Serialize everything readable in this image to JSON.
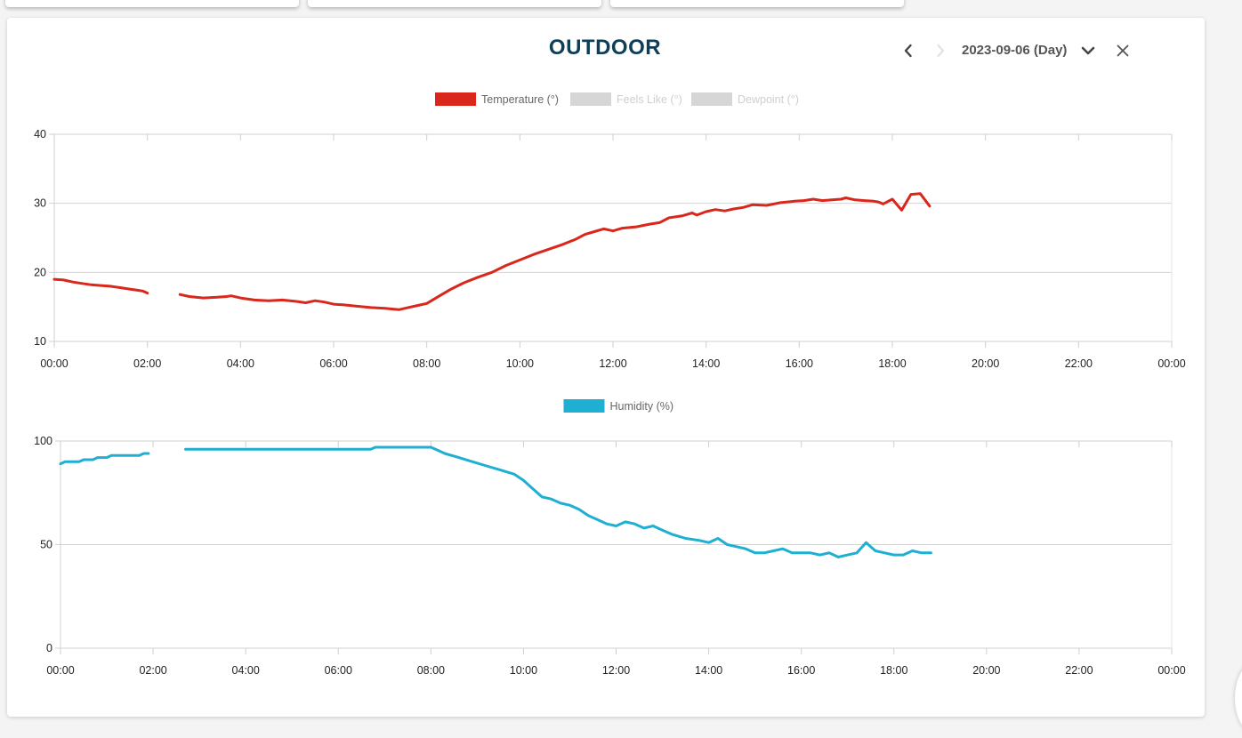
{
  "header": {
    "title": "OUTDOOR",
    "date_label": "2023-09-06 (Day)",
    "icons": {
      "prev": "chevron-left-icon",
      "next": "chevron-right-icon",
      "dropdown": "chevron-down-icon",
      "close": "close-icon"
    }
  },
  "colors": {
    "title": "#0e3f57",
    "temperature": "#d9271c",
    "humidity": "#1eafd2",
    "legend_inactive": "#d6d6d6"
  },
  "chart_data": [
    {
      "type": "line",
      "title": "",
      "xlabel": "",
      "ylabel": "",
      "xlim": [
        0,
        24
      ],
      "ylim": [
        10,
        40
      ],
      "yticks": [
        "10",
        "20",
        "30",
        "40"
      ],
      "xticks": [
        "00:00",
        "02:00",
        "04:00",
        "06:00",
        "08:00",
        "10:00",
        "12:00",
        "14:00",
        "16:00",
        "18:00",
        "20:00",
        "22:00",
        "00:00"
      ],
      "legend_position": "top-center",
      "legend": [
        {
          "label": "Temperature (°)",
          "active": true
        },
        {
          "label": "Feels Like (°)",
          "active": false
        },
        {
          "label": "Dewpoint (°)",
          "active": false
        }
      ],
      "series": [
        {
          "name": "Temperature (°)",
          "segments": [
            [
              [
                0,
                19
              ],
              [
                0.2,
                18.9
              ],
              [
                0.4,
                18.6
              ],
              [
                0.6,
                18.4
              ],
              [
                0.8,
                18.2
              ],
              [
                1.0,
                18.1
              ],
              [
                1.2,
                18.0
              ],
              [
                1.4,
                17.8
              ],
              [
                1.6,
                17.6
              ],
              [
                1.8,
                17.4
              ],
              [
                1.9,
                17.3
              ],
              [
                2.0,
                17.0
              ]
            ],
            [
              [
                2.7,
                16.8
              ],
              [
                2.9,
                16.5
              ],
              [
                3.2,
                16.3
              ],
              [
                3.5,
                16.4
              ],
              [
                3.7,
                16.5
              ],
              [
                3.8,
                16.6
              ],
              [
                4.0,
                16.3
              ],
              [
                4.3,
                16.0
              ],
              [
                4.6,
                15.9
              ],
              [
                4.9,
                16.0
              ],
              [
                5.2,
                15.8
              ],
              [
                5.4,
                15.6
              ],
              [
                5.6,
                15.9
              ],
              [
                5.8,
                15.7
              ],
              [
                6.0,
                15.4
              ],
              [
                6.2,
                15.3
              ],
              [
                6.5,
                15.1
              ],
              [
                6.8,
                14.9
              ],
              [
                7.1,
                14.8
              ],
              [
                7.4,
                14.6
              ],
              [
                7.6,
                14.9
              ],
              [
                7.8,
                15.2
              ],
              [
                8.0,
                15.5
              ],
              [
                8.2,
                16.3
              ],
              [
                8.5,
                17.5
              ],
              [
                8.8,
                18.5
              ],
              [
                9.1,
                19.3
              ],
              [
                9.4,
                20.0
              ],
              [
                9.7,
                21.0
              ],
              [
                10.0,
                21.8
              ],
              [
                10.3,
                22.6
              ],
              [
                10.6,
                23.3
              ],
              [
                10.9,
                24.0
              ],
              [
                11.2,
                24.8
              ],
              [
                11.4,
                25.5
              ],
              [
                11.6,
                25.9
              ],
              [
                11.8,
                26.3
              ],
              [
                12.0,
                26.0
              ],
              [
                12.2,
                26.4
              ],
              [
                12.5,
                26.6
              ],
              [
                12.8,
                27.0
              ],
              [
                13.0,
                27.2
              ],
              [
                13.2,
                27.9
              ],
              [
                13.5,
                28.2
              ],
              [
                13.7,
                28.6
              ],
              [
                13.8,
                28.3
              ],
              [
                14.0,
                28.8
              ],
              [
                14.2,
                29.1
              ],
              [
                14.4,
                28.9
              ],
              [
                14.6,
                29.2
              ],
              [
                14.8,
                29.4
              ],
              [
                15.0,
                29.8
              ],
              [
                15.3,
                29.7
              ],
              [
                15.6,
                30.1
              ],
              [
                15.9,
                30.3
              ],
              [
                16.1,
                30.4
              ],
              [
                16.3,
                30.6
              ],
              [
                16.5,
                30.4
              ],
              [
                16.7,
                30.5
              ],
              [
                16.9,
                30.6
              ],
              [
                17.0,
                30.8
              ],
              [
                17.2,
                30.5
              ],
              [
                17.4,
                30.4
              ],
              [
                17.6,
                30.3
              ],
              [
                17.7,
                30.2
              ],
              [
                17.8,
                29.9
              ],
              [
                18.0,
                30.6
              ],
              [
                18.2,
                29.0
              ],
              [
                18.4,
                31.3
              ],
              [
                18.6,
                31.4
              ],
              [
                18.8,
                29.6
              ]
            ]
          ]
        }
      ]
    },
    {
      "type": "line",
      "title": "",
      "xlabel": "",
      "ylabel": "",
      "xlim": [
        0,
        24
      ],
      "ylim": [
        0,
        100
      ],
      "yticks": [
        "0",
        "50",
        "100"
      ],
      "xticks": [
        "00:00",
        "02:00",
        "04:00",
        "06:00",
        "08:00",
        "10:00",
        "12:00",
        "14:00",
        "16:00",
        "18:00",
        "20:00",
        "22:00",
        "00:00"
      ],
      "legend_position": "top-center",
      "legend": [
        {
          "label": "Humidity (%)",
          "active": true
        }
      ],
      "series": [
        {
          "name": "Humidity (%)",
          "segments": [
            [
              [
                0,
                89
              ],
              [
                0.1,
                90
              ],
              [
                0.4,
                90
              ],
              [
                0.5,
                91
              ],
              [
                0.7,
                91
              ],
              [
                0.8,
                92
              ],
              [
                1.0,
                92
              ],
              [
                1.1,
                93
              ],
              [
                1.4,
                93
              ],
              [
                1.7,
                93
              ],
              [
                1.8,
                94
              ],
              [
                1.9,
                94
              ]
            ],
            [
              [
                2.7,
                96
              ],
              [
                4.0,
                96
              ],
              [
                6.7,
                96
              ],
              [
                6.8,
                97
              ],
              [
                8.0,
                97
              ],
              [
                8.1,
                96
              ],
              [
                8.3,
                94
              ],
              [
                8.6,
                92
              ],
              [
                8.9,
                90
              ],
              [
                9.2,
                88
              ],
              [
                9.5,
                86
              ],
              [
                9.8,
                84
              ],
              [
                10.0,
                81
              ],
              [
                10.2,
                77
              ],
              [
                10.4,
                73
              ],
              [
                10.6,
                72
              ],
              [
                10.8,
                70
              ],
              [
                11.0,
                69
              ],
              [
                11.2,
                67
              ],
              [
                11.4,
                64
              ],
              [
                11.6,
                62
              ],
              [
                11.8,
                60
              ],
              [
                12.0,
                59
              ],
              [
                12.2,
                61
              ],
              [
                12.4,
                60
              ],
              [
                12.6,
                58
              ],
              [
                12.8,
                59
              ],
              [
                13.0,
                57
              ],
              [
                13.2,
                55
              ],
              [
                13.5,
                53
              ],
              [
                13.8,
                52
              ],
              [
                14.0,
                51
              ],
              [
                14.2,
                53
              ],
              [
                14.4,
                50
              ],
              [
                14.6,
                49
              ],
              [
                14.8,
                48
              ],
              [
                15.0,
                46
              ],
              [
                15.2,
                46
              ],
              [
                15.4,
                47
              ],
              [
                15.6,
                48
              ],
              [
                15.8,
                46
              ],
              [
                16.0,
                46
              ],
              [
                16.2,
                46
              ],
              [
                16.4,
                45
              ],
              [
                16.6,
                46
              ],
              [
                16.8,
                44
              ],
              [
                17.0,
                45
              ],
              [
                17.2,
                46
              ],
              [
                17.4,
                51
              ],
              [
                17.6,
                47
              ],
              [
                17.8,
                46
              ],
              [
                18.0,
                45
              ],
              [
                18.2,
                45
              ],
              [
                18.4,
                47
              ],
              [
                18.6,
                46
              ],
              [
                18.8,
                46
              ]
            ]
          ]
        }
      ]
    }
  ]
}
